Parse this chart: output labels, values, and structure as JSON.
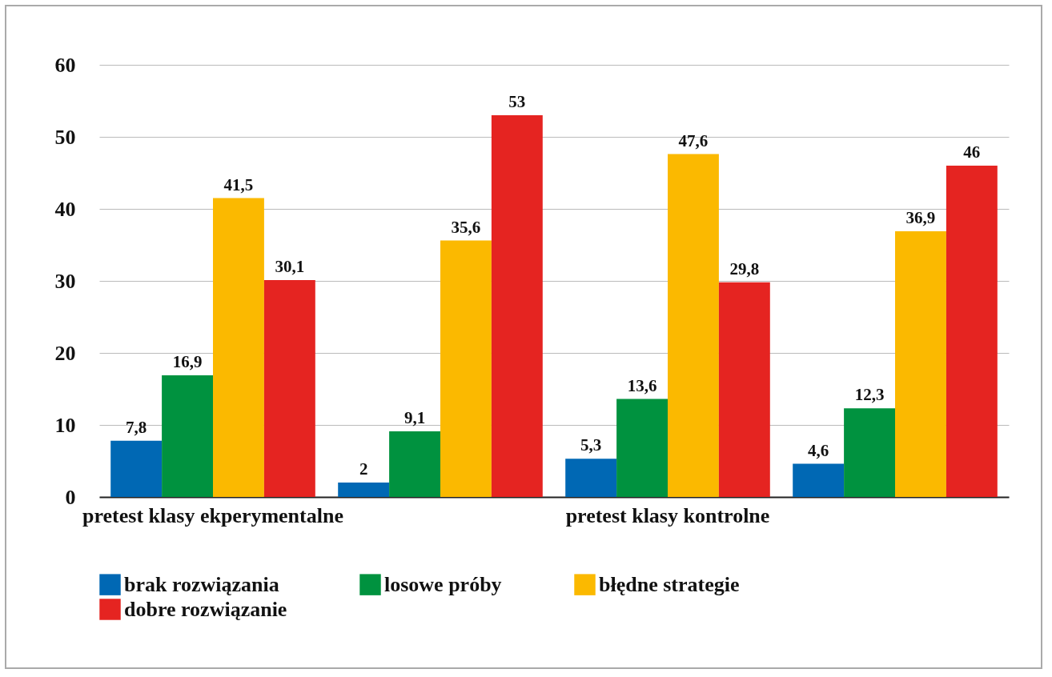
{
  "chart_data": {
    "type": "bar",
    "categories": [
      "pretest klasy ekperymentalne",
      null,
      "pretest klasy kontrolne",
      null
    ],
    "series": [
      {
        "name": "brak rozwiązania",
        "color": "#0068b4",
        "values": [
          7.8,
          2,
          5.3,
          4.6
        ],
        "value_labels": [
          "7,8",
          "2",
          "5,3",
          "4,6"
        ]
      },
      {
        "name": "losowe próby",
        "color": "#00923f",
        "values": [
          16.9,
          9.1,
          13.6,
          12.3
        ],
        "value_labels": [
          "16,9",
          "9,1",
          "13,6",
          "12,3"
        ]
      },
      {
        "name": "błędne strategie",
        "color": "#fbb900",
        "values": [
          41.5,
          35.6,
          47.6,
          36.9
        ],
        "value_labels": [
          "41,5",
          "35,6",
          "47,6",
          "36,9"
        ]
      },
      {
        "name": "dobre rozwiązanie",
        "color": "#e52421",
        "values": [
          30.1,
          53,
          29.8,
          46
        ],
        "value_labels": [
          "30,1",
          "53",
          "29,8",
          "46"
        ]
      }
    ],
    "ylim": [
      0,
      60
    ],
    "yticks": [
      0,
      10,
      20,
      30,
      40,
      50,
      60
    ],
    "grid": "y",
    "legend": "bottom"
  }
}
